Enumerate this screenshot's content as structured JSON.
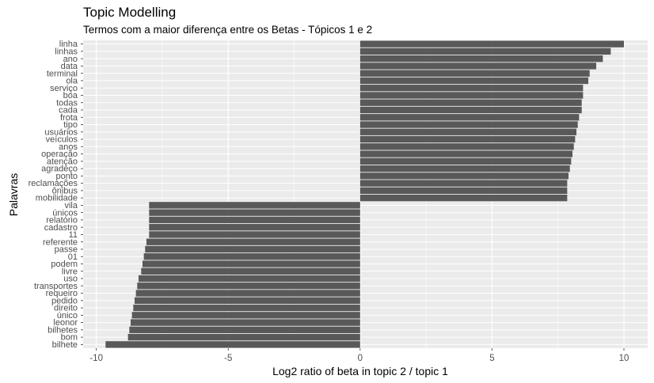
{
  "title": "Topic Modelling",
  "subtitle": "Termos com a maior diferença entre os Betas - Tópicos 1 e 2",
  "colors": {
    "panel": "#EBEBEB",
    "grid": "#FFFFFF",
    "bar": "#595959",
    "tick_text": "#4D4D4D"
  },
  "chart_data": {
    "type": "bar",
    "orientation": "horizontal",
    "title": "Topic Modelling",
    "subtitle": "Termos com a maior diferença entre os Betas - Tópicos 1 e 2",
    "xlabel": "Log2 ratio of beta in topic 2 / topic 1",
    "ylabel": "Palavras",
    "xlim": [
      -10.5,
      10.9
    ],
    "xticks": [
      -10,
      -5,
      0,
      5,
      10
    ],
    "xtick_labels": [
      "-10",
      "-5",
      "0",
      "5",
      "10"
    ],
    "grid": true,
    "categories": [
      "linha",
      "linhas",
      "ano",
      "data",
      "terminal",
      "ola",
      "serviço",
      "boa",
      "todas",
      "cada",
      "frota",
      "tipo",
      "usuários",
      "veículos",
      "anos",
      "operação",
      "atenção",
      "agradeço",
      "ponto",
      "reclamações",
      "ônibus",
      "mobilidade",
      "vila",
      "únicos",
      "relatório",
      "cadastro",
      "11",
      "referente",
      "passe",
      "01",
      "podem",
      "livre",
      "uso",
      "transportes",
      "requeiro",
      "pedido",
      "direito",
      "único",
      "leonor",
      "bilhetes",
      "bom",
      "bilhete"
    ],
    "values": [
      10.0,
      9.5,
      9.2,
      8.95,
      8.7,
      8.65,
      8.45,
      8.45,
      8.4,
      8.4,
      8.3,
      8.25,
      8.2,
      8.15,
      8.1,
      8.05,
      8.0,
      7.95,
      7.9,
      7.85,
      7.85,
      7.85,
      -8.0,
      -8.0,
      -8.0,
      -8.0,
      -8.0,
      -8.1,
      -8.15,
      -8.2,
      -8.25,
      -8.3,
      -8.4,
      -8.45,
      -8.5,
      -8.55,
      -8.6,
      -8.65,
      -8.7,
      -8.75,
      -8.8,
      -9.65
    ]
  }
}
